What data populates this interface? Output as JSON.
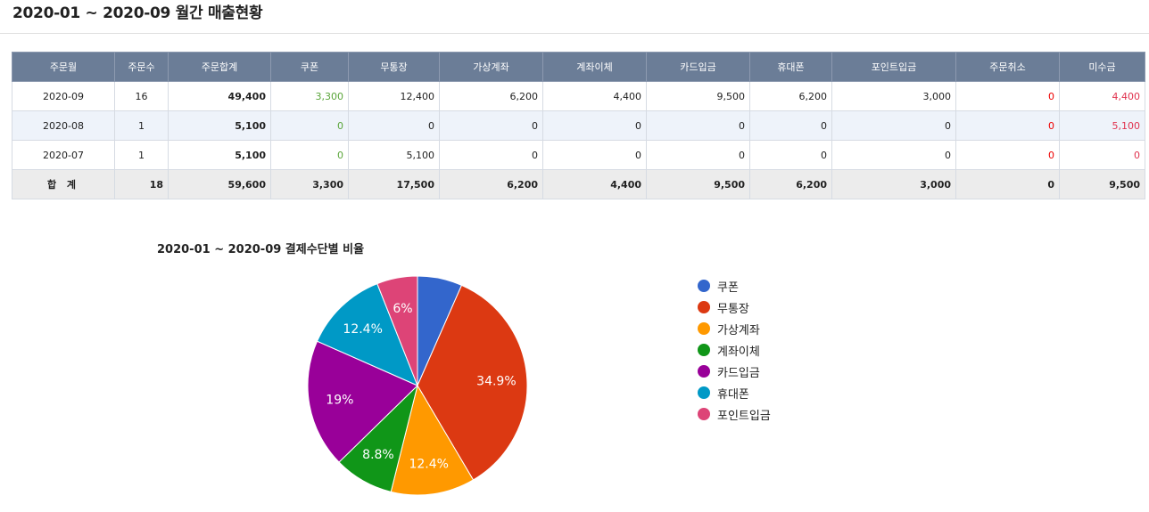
{
  "page_title": "2020-01 ~ 2020-09 월간 매출현황",
  "table": {
    "headers": [
      "주문월",
      "주문수",
      "주문합계",
      "쿠폰",
      "무통장",
      "가상계좌",
      "계좌이체",
      "카드입금",
      "휴대폰",
      "포인트입금",
      "주문취소",
      "미수금"
    ],
    "rows": [
      [
        "2020-09",
        "16",
        "49,400",
        "3,300",
        "12,400",
        "6,200",
        "4,400",
        "9,500",
        "6,200",
        "3,000",
        "0",
        "4,400"
      ],
      [
        "2020-08",
        "1",
        "5,100",
        "0",
        "0",
        "0",
        "0",
        "0",
        "0",
        "0",
        "0",
        "5,100"
      ],
      [
        "2020-07",
        "1",
        "5,100",
        "0",
        "5,100",
        "0",
        "0",
        "0",
        "0",
        "0",
        "0",
        "0"
      ]
    ],
    "total": [
      "합 계",
      "18",
      "59,600",
      "3,300",
      "17,500",
      "6,200",
      "4,400",
      "9,500",
      "6,200",
      "3,000",
      "0",
      "9,500"
    ]
  },
  "chart_data": {
    "type": "pie",
    "title": "2020-01 ~ 2020-09 결제수단별 비율",
    "categories": [
      "쿠폰",
      "무통장",
      "가상계좌",
      "계좌이체",
      "카드입금",
      "휴대폰",
      "포인트입금"
    ],
    "values": [
      3300,
      17500,
      6200,
      4400,
      9500,
      6200,
      3000
    ],
    "labels": [
      "",
      "34.9%",
      "12.4%",
      "8.8%",
      "19%",
      "12.4%",
      "6%"
    ],
    "colors": [
      "#3366cc",
      "#dc3912",
      "#ff9900",
      "#109618",
      "#990099",
      "#0099c6",
      "#dd4477"
    ],
    "legend_position": "right"
  }
}
